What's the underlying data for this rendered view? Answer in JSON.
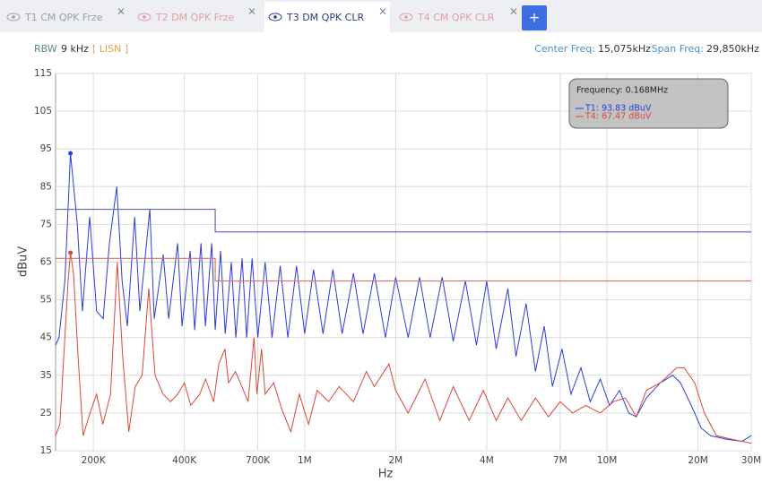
{
  "tabs": [
    {
      "label": "T1 CM QPK Frze"
    },
    {
      "label": "T2 DM QPK Frze"
    },
    {
      "label": "T3 DM QPK CLR"
    },
    {
      "label": "T4 CM QPK CLR"
    }
  ],
  "add_tab": "+",
  "header": {
    "rbw_label": "RBW",
    "rbw": "9 kHz",
    "source": "[ LISN ]",
    "center_label": "Center Freq:",
    "center": "15,075kHz",
    "span_label": "Span Freq:",
    "span": "29,850kHz"
  },
  "tooltip": {
    "frequency": "Frequency: 0.168MHz",
    "lines": [
      "T1: 93.83 dBuV",
      "T4: 67.47 dBuV"
    ]
  },
  "chart_data": {
    "type": "line",
    "x_label": "Hz",
    "y_label": "dBuV",
    "log_x": true,
    "grid": true,
    "xlim": [
      150000,
      30000000
    ],
    "ylim": [
      15,
      115
    ],
    "xticks": [
      {
        "value": 200000,
        "label": "200K"
      },
      {
        "value": 400000,
        "label": "400K"
      },
      {
        "value": 700000,
        "label": "700K"
      },
      {
        "value": 1000000,
        "label": "1M"
      },
      {
        "value": 2000000,
        "label": "2M"
      },
      {
        "value": 4000000,
        "label": "4M"
      },
      {
        "value": 7000000,
        "label": "7M"
      },
      {
        "value": 10000000,
        "label": "10M"
      },
      {
        "value": 20000000,
        "label": "20M"
      },
      {
        "value": 30000000,
        "label": "30M"
      }
    ],
    "yticks": [
      15,
      25,
      35,
      45,
      55,
      65,
      75,
      85,
      95,
      105,
      115
    ],
    "series": [
      {
        "color": "#2b3bd9",
        "width": 1,
        "x": [
          150000,
          154000,
          161000,
          168000,
          177000,
          184000,
          194500,
          205000,
          215500,
          226000,
          239000,
          249000,
          259000,
          274000,
          285000,
          307500,
          318000,
          340600,
          355000,
          380000,
          393000,
          418000,
          432500,
          454000,
          469500,
          492600,
          506000,
          527000,
          546000,
          572000,
          592000,
          621000,
          643000,
          670000,
          700000,
          740000,
          780000,
          830000,
          880000,
          940000,
          1000000,
          1070000,
          1150000,
          1240000,
          1330000,
          1450000,
          1560000,
          1700000,
          1850000,
          2000000,
          2200000,
          2400000,
          2600000,
          2850000,
          3100000,
          3400000,
          3700000,
          4000000,
          4300000,
          4700000,
          5000000,
          5400000,
          5800000,
          6200000,
          6600000,
          7100000,
          7600000,
          8200000,
          8800000,
          9500000,
          10200000,
          11000000,
          11800000,
          12500000,
          13500000,
          15000000,
          16500000,
          17500000,
          19000000,
          20500000,
          22000000,
          25000000,
          28000000,
          30000000
        ],
        "values": [
          43,
          45,
          60,
          93.83,
          75,
          52,
          77,
          52,
          50,
          70,
          85,
          60,
          48,
          77,
          52,
          79,
          50,
          67,
          50,
          70,
          48,
          68,
          47,
          70,
          48,
          70,
          47,
          68,
          46,
          65,
          45,
          66,
          45,
          66,
          45,
          65,
          45,
          64,
          45,
          64,
          46,
          63,
          46,
          63,
          46,
          62,
          46,
          62,
          45,
          61,
          45,
          61,
          45,
          61,
          44,
          60,
          43,
          60,
          42,
          58,
          40,
          54,
          36,
          48,
          32,
          42,
          30,
          37,
          28,
          34,
          27,
          31,
          25,
          24,
          29,
          33,
          35,
          33,
          27,
          21,
          19,
          18,
          17.5,
          19
        ]
      },
      {
        "color": "#d9483b",
        "width": 1,
        "x": [
          150000,
          155000,
          165000,
          168000,
          172000,
          178000,
          185000,
          195000,
          205000,
          215000,
          228000,
          240000,
          250000,
          262000,
          275000,
          290000,
          305000,
          320000,
          340000,
          360000,
          380000,
          400000,
          420000,
          450000,
          470000,
          500000,
          520000,
          545000,
          560000,
          590000,
          620000,
          650000,
          680000,
          695000,
          720000,
          740000,
          790000,
          840000,
          900000,
          960000,
          1030000,
          1100000,
          1200000,
          1300000,
          1450000,
          1600000,
          1700000,
          1900000,
          2000000,
          2200000,
          2500000,
          2800000,
          3100000,
          3500000,
          3900000,
          4300000,
          4700000,
          5200000,
          5800000,
          6400000,
          7000000,
          7700000,
          8500000,
          9500000,
          10500000,
          11500000,
          12500000,
          13500000,
          15000000,
          17000000,
          18000000,
          19500000,
          21000000,
          23000000,
          26000000,
          30000000
        ],
        "values": [
          19,
          22,
          60,
          67.47,
          62,
          40,
          19,
          25,
          30,
          22,
          30,
          65,
          40,
          20,
          32,
          35,
          58,
          35,
          30,
          28,
          30,
          33,
          27,
          30,
          34,
          28,
          38,
          42,
          33,
          36,
          32,
          28,
          45,
          30,
          42,
          30,
          33,
          26,
          20,
          30,
          22,
          31,
          28,
          32,
          28,
          36,
          32,
          38,
          31,
          25,
          34,
          23,
          32,
          23,
          31,
          23,
          29,
          23,
          29,
          24,
          28,
          25,
          27,
          25,
          28,
          29,
          24,
          31,
          33,
          37,
          37,
          33,
          25,
          19,
          18,
          17
        ]
      },
      {
        "color": "#5a64c8",
        "width": 1.2,
        "x": [
          150000,
          506000,
          506000,
          30000000
        ],
        "values": [
          79,
          79,
          73,
          73
        ]
      },
      {
        "color": "#e07060",
        "width": 1.2,
        "x": [
          150000,
          506000,
          506000,
          30000000
        ],
        "values": [
          66,
          66,
          60,
          60
        ]
      }
    ]
  }
}
